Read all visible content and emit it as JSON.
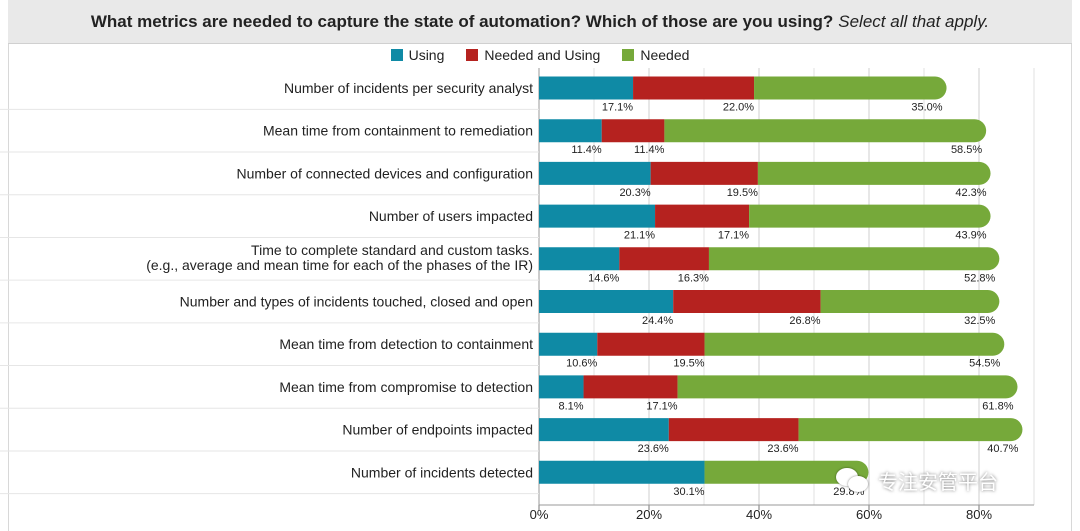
{
  "header": {
    "question": "What metrics are needed to capture the state of automation? Which of those are you using?",
    "instruction": "Select all that apply."
  },
  "legend": [
    {
      "name": "Using",
      "color": "#0f8aa5"
    },
    {
      "name": "Needed and Using",
      "color": "#b5221f"
    },
    {
      "name": "Needed",
      "color": "#76a93a"
    }
  ],
  "watermark": {
    "text": "专注安管平台",
    "icon": "wechat-icon"
  },
  "chart_data": {
    "type": "bar",
    "orientation": "horizontal",
    "stacked": true,
    "categories": [
      [
        "Number of incidents per security analyst"
      ],
      [
        "Mean time from containment to remediation"
      ],
      [
        "Number of connected devices and configuration"
      ],
      [
        "Number of users impacted"
      ],
      [
        "Time to complete standard and custom tasks.",
        "(e.g., average and mean time for each of the phases of the IR)"
      ],
      [
        "Number and types of incidents touched, closed and open"
      ],
      [
        "Mean time from detection to containment"
      ],
      [
        "Mean time from compromise to detection"
      ],
      [
        "Number of endpoints impacted"
      ],
      [
        "Number of incidents detected"
      ]
    ],
    "series": [
      {
        "name": "Using",
        "color": "#0f8aa5",
        "values": [
          17.1,
          11.4,
          20.3,
          21.1,
          14.6,
          24.4,
          10.6,
          8.1,
          23.6,
          30.1
        ]
      },
      {
        "name": "Needed and Using",
        "color": "#b5221f",
        "values": [
          22.0,
          11.4,
          19.5,
          17.1,
          16.3,
          26.8,
          19.5,
          17.1,
          23.6,
          0
        ]
      },
      {
        "name": "Needed",
        "color": "#76a93a",
        "values": [
          35.0,
          58.5,
          42.3,
          43.9,
          52.8,
          32.5,
          54.5,
          61.8,
          40.7,
          29.8
        ]
      }
    ],
    "labels": [
      [
        "17.1%",
        "22.0%",
        "35.0%"
      ],
      [
        "11.4%",
        "11.4%",
        "58.5%"
      ],
      [
        "20.3%",
        "19.5%",
        "42.3%"
      ],
      [
        "21.1%",
        "17.1%",
        "43.9%"
      ],
      [
        "14.6%",
        "16.3%",
        "52.8%"
      ],
      [
        "24.4%",
        "26.8%",
        "32.5%"
      ],
      [
        "10.6%",
        "19.5%",
        "54.5%"
      ],
      [
        "8.1%",
        "17.1%",
        "61.8%"
      ],
      [
        "23.6%",
        "23.6%",
        "40.7%"
      ],
      [
        "30.1%",
        "",
        "29.8%"
      ]
    ],
    "xlim": [
      0,
      90
    ],
    "xticks": [
      0,
      20,
      40,
      60,
      80
    ],
    "xtick_labels": [
      "0%",
      "20%",
      "40%",
      "60%",
      "80%"
    ],
    "grid": true
  }
}
